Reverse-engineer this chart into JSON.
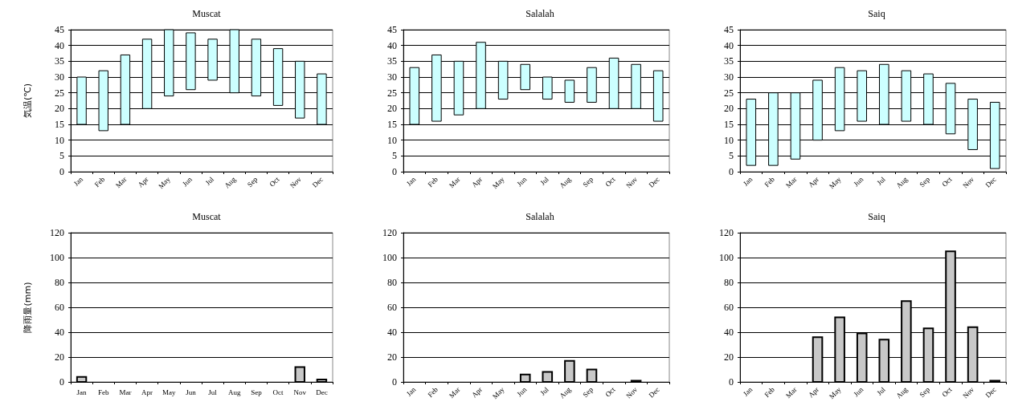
{
  "chart_data": [
    {
      "type": "bar",
      "title": "Muscat",
      "ylabel": "気温(℃)",
      "categories": [
        "Jan",
        "Feb",
        "Mar",
        "Apr",
        "May",
        "Jun",
        "Jul",
        "Aug",
        "Sep",
        "Oct",
        "Nov",
        "Dec"
      ],
      "base": [
        15,
        13,
        15,
        20,
        24,
        26,
        29,
        25,
        24,
        21,
        17,
        15
      ],
      "values": [
        15,
        19,
        22,
        22,
        21,
        18,
        13,
        20,
        18,
        18,
        18,
        16
      ],
      "color": "#ccffff",
      "ylim": [
        0,
        45
      ],
      "yticks": [
        0,
        5,
        10,
        15,
        20,
        25,
        30,
        35,
        40,
        45
      ],
      "grid": "y"
    },
    {
      "type": "bar",
      "title": "Salalah",
      "categories": [
        "Jan",
        "Feb",
        "Mar",
        "Apr",
        "May",
        "Jun",
        "Jul",
        "Aug",
        "Sep",
        "Oct",
        "Nov",
        "Dec"
      ],
      "base": [
        15,
        16,
        18,
        20,
        23,
        26,
        23,
        22,
        22,
        20,
        20,
        16
      ],
      "values": [
        18,
        21,
        17,
        21,
        12,
        8,
        7,
        7,
        11,
        16,
        14,
        16
      ],
      "color": "#ccffff",
      "ylim": [
        0,
        45
      ],
      "yticks": [
        0,
        5,
        10,
        15,
        20,
        25,
        30,
        35,
        40,
        45
      ],
      "grid": "y"
    },
    {
      "type": "bar",
      "title": "Saiq",
      "categories": [
        "Jan",
        "Feb",
        "Mar",
        "Apr",
        "May",
        "Jun",
        "Jul",
        "Aug",
        "Sep",
        "Oct",
        "Nov",
        "Dec"
      ],
      "base": [
        2,
        2,
        4,
        10,
        13,
        16,
        15,
        16,
        15,
        12,
        7,
        1
      ],
      "values": [
        21,
        23,
        21,
        19,
        20,
        16,
        19,
        16,
        16,
        16,
        16,
        21
      ],
      "color": "#ccffff",
      "ylim": [
        0,
        45
      ],
      "yticks": [
        0,
        5,
        10,
        15,
        20,
        25,
        30,
        35,
        40,
        45
      ],
      "grid": "y"
    },
    {
      "type": "bar",
      "title": "Muscat",
      "ylabel": "降雨量(mm)",
      "categories": [
        "Jan",
        "Feb",
        "Mar",
        "Apr",
        "May",
        "Jun",
        "Jul",
        "Aug",
        "Sep",
        "Oct",
        "Nov",
        "Dec"
      ],
      "values": [
        4,
        0,
        0,
        0,
        0,
        0,
        0,
        0,
        0,
        0,
        12,
        2
      ],
      "color": "#c8c8c8",
      "ylim": [
        0,
        120
      ],
      "yticks": [
        0,
        20,
        40,
        60,
        80,
        100,
        120
      ],
      "grid": "y"
    },
    {
      "type": "bar",
      "title": "Salalah",
      "categories": [
        "Jan",
        "Feb",
        "Mar",
        "Apr",
        "May",
        "Jun",
        "Jul",
        "Aug",
        "Sep",
        "Oct",
        "Nov",
        "Dec"
      ],
      "values": [
        0,
        0,
        0,
        0,
        0,
        6,
        8,
        17,
        10,
        0,
        1,
        0
      ],
      "color": "#c8c8c8",
      "ylim": [
        0,
        120
      ],
      "yticks": [
        0,
        20,
        40,
        60,
        80,
        100,
        120
      ],
      "grid": "y"
    },
    {
      "type": "bar",
      "title": "Saiq",
      "categories": [
        "Jan",
        "Feb",
        "Mar",
        "Apr",
        "May",
        "Jun",
        "Jul",
        "Aug",
        "Sep",
        "Oct",
        "Nov",
        "Dec"
      ],
      "values": [
        0,
        0,
        0,
        36,
        52,
        39,
        34,
        65,
        43,
        105,
        44,
        1
      ],
      "color": "#c8c8c8",
      "ylim": [
        0,
        120
      ],
      "yticks": [
        0,
        20,
        40,
        60,
        80,
        100,
        120
      ],
      "grid": "y"
    }
  ]
}
